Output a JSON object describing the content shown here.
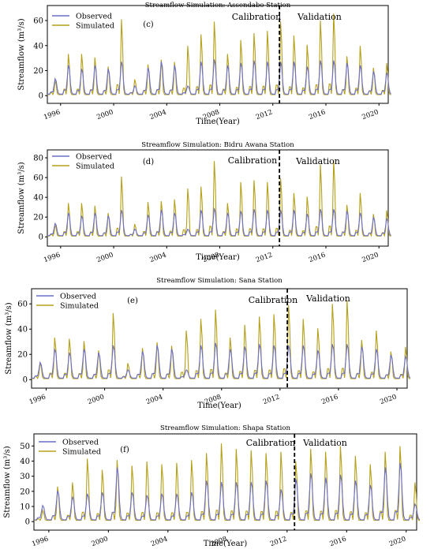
{
  "colors": {
    "observed": "#6c6fc9",
    "simulated": "#b5a01a",
    "divider": "#000000"
  },
  "chart_data": [
    {
      "type": "line",
      "title": "Streamflow Simulation: Assendabo Station",
      "panel_label": "(c)",
      "xlabel": "Time(Year)",
      "ylabel": "Streamflow (m³/s)",
      "xticks": [
        "1996",
        "2000",
        "2004",
        "2008",
        "2012",
        "2016",
        "2020"
      ],
      "yticks": [
        "0",
        "20",
        "40",
        "60"
      ],
      "xlim": [
        1995,
        2020.7
      ],
      "ylim": [
        -3,
        72
      ],
      "split_year": 2012.5,
      "period_labels": [
        "Calibration",
        "Validation"
      ],
      "legend": "top-left",
      "years": [
        1995,
        1996,
        1997,
        1998,
        1999,
        2000,
        2001,
        2002,
        2003,
        2004,
        2005,
        2006,
        2007,
        2008,
        2009,
        2010,
        2011,
        2012,
        2013,
        2014,
        2015,
        2016,
        2017,
        2018,
        2019,
        2020
      ],
      "series": [
        {
          "name": "Observed",
          "annual_peaks": [
            14,
            25,
            22,
            25,
            22,
            28,
            8,
            23,
            28,
            25,
            8,
            28,
            30,
            25,
            27,
            29,
            28,
            28,
            28,
            24,
            29,
            29,
            27,
            25,
            20,
            19
          ]
        },
        {
          "name": "Simulated",
          "annual_peaks": [
            13,
            36,
            36,
            33,
            25,
            66,
            14,
            27,
            31,
            29,
            43,
            53,
            64,
            36,
            48,
            54,
            56,
            64,
            52,
            44,
            65,
            71,
            34,
            43,
            24,
            28
          ]
        }
      ]
    },
    {
      "type": "line",
      "title": "Streamflow Simulation: Bidru Awana Station",
      "panel_label": "(d)",
      "xlabel": "Time(Year)",
      "ylabel": "Streamflow (m³/s)",
      "xticks": [
        "1996",
        "2000",
        "2004",
        "2008",
        "2012",
        "2016",
        "2020"
      ],
      "yticks": [
        "0",
        "20",
        "40",
        "60",
        "80"
      ],
      "xlim": [
        1995,
        2020.7
      ],
      "ylim": [
        -3,
        88
      ],
      "split_year": 2012.5,
      "period_labels": [
        "Calibration",
        "Validation"
      ],
      "legend": "top-left",
      "years": [
        1995,
        1996,
        1997,
        1998,
        1999,
        2000,
        2001,
        2002,
        2003,
        2004,
        2005,
        2006,
        2007,
        2008,
        2009,
        2010,
        2011,
        2012,
        2013,
        2014,
        2015,
        2016,
        2017,
        2018,
        2019,
        2020
      ],
      "series": [
        {
          "name": "Observed",
          "annual_peaks": [
            14,
            25,
            22,
            25,
            22,
            28,
            8,
            23,
            28,
            25,
            8,
            28,
            30,
            25,
            27,
            29,
            28,
            28,
            28,
            24,
            29,
            29,
            27,
            25,
            20,
            19
          ]
        },
        {
          "name": "Simulated",
          "annual_peaks": [
            13,
            37,
            37,
            34,
            26,
            66,
            14,
            38,
            39,
            41,
            53,
            55,
            83,
            37,
            60,
            62,
            60,
            64,
            48,
            44,
            79,
            84,
            35,
            48,
            25,
            29
          ]
        }
      ]
    },
    {
      "type": "line",
      "title": "Streamflow Simulation: Sana Station",
      "panel_label": "(e)",
      "xlabel": "Time(Year)",
      "ylabel": "Streamflow (m³/s)",
      "xticks": [
        "1996",
        "2000",
        "2004",
        "2008",
        "2012",
        "2016",
        "2020"
      ],
      "yticks": [
        "0",
        "20",
        "40",
        "60"
      ],
      "xlim": [
        1995,
        2020.7
      ],
      "ylim": [
        -3,
        72
      ],
      "split_year": 2012.5,
      "period_labels": [
        "Calibration",
        "Validation"
      ],
      "legend": "top-left",
      "years": [
        1995,
        1996,
        1997,
        1998,
        1999,
        2000,
        2001,
        2002,
        2003,
        2004,
        2005,
        2006,
        2007,
        2008,
        2009,
        2010,
        2011,
        2012,
        2013,
        2014,
        2015,
        2016,
        2017,
        2018,
        2019,
        2020
      ],
      "series": [
        {
          "name": "Observed",
          "annual_peaks": [
            14,
            25,
            22,
            25,
            22,
            28,
            8,
            23,
            28,
            25,
            8,
            28,
            30,
            25,
            27,
            29,
            28,
            28,
            28,
            24,
            29,
            29,
            27,
            25,
            20,
            19
          ]
        },
        {
          "name": "Simulated",
          "annual_peaks": [
            15,
            36,
            35,
            33,
            25,
            57,
            14,
            27,
            32,
            29,
            42,
            52,
            60,
            36,
            47,
            54,
            56,
            64,
            52,
            44,
            65,
            68,
            34,
            42,
            24,
            28
          ]
        }
      ]
    },
    {
      "type": "line",
      "title": "Streamflow Simulation: Shapa Station",
      "panel_label": "(f)",
      "xlabel": "Time(Year)",
      "ylabel": "Streamflow (m³/s)",
      "xticks": [
        "1996",
        "2000",
        "2004",
        "2008",
        "2012",
        "2016",
        "2020"
      ],
      "yticks": [
        "0",
        "10",
        "20",
        "30",
        "40",
        "50"
      ],
      "xlim": [
        1995,
        2020.7
      ],
      "ylim": [
        -2,
        58
      ],
      "split_year": 2012.5,
      "period_labels": [
        "Calibration",
        "Validation"
      ],
      "legend": "top-left",
      "years": [
        1995,
        1996,
        1997,
        1998,
        1999,
        2000,
        2001,
        2002,
        2003,
        2004,
        2005,
        2006,
        2007,
        2008,
        2009,
        2010,
        2011,
        2012,
        2013,
        2014,
        2015,
        2016,
        2017,
        2018,
        2019,
        2020
      ],
      "series": [
        {
          "name": "Observed",
          "annual_peaks": [
            11,
            21,
            17,
            19,
            20,
            37,
            20,
            18,
            19,
            19,
            20,
            28,
            27,
            27,
            27,
            28,
            22,
            29,
            33,
            30,
            32,
            28,
            25,
            37,
            40,
            12
          ]
        },
        {
          "name": "Simulated",
          "annual_peaks": [
            8,
            25,
            28,
            45,
            37,
            44,
            40,
            43,
            41,
            42,
            44,
            49,
            56,
            52,
            51,
            49,
            50,
            43,
            52,
            50,
            54,
            47,
            41,
            50,
            54,
            28
          ]
        }
      ]
    }
  ]
}
